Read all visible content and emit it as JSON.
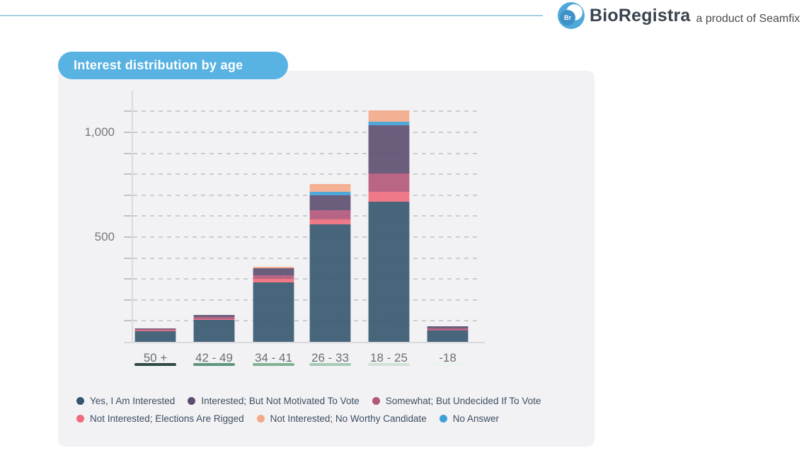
{
  "header": {
    "logo": {
      "icon_label": "Br",
      "brand": "BioRegistra",
      "tagline": "a product of Seamfix"
    }
  },
  "card": {
    "title": "Interest distribution by age"
  },
  "theme": {
    "top_rule_color": "#A7CFE0",
    "badge_bg": "#58B2E2",
    "card_bg": "#F2F2F4",
    "axis_color": "#D9DADD",
    "grid_color": "#CBCCD0",
    "logo_blue": "#4FA8DA"
  },
  "chart_data": {
    "type": "bar",
    "stacked": true,
    "title": "Interest distribution by age",
    "categories": [
      "50 +",
      "42 - 49",
      "34 - 41",
      "26 - 33",
      "18 - 25",
      "-18"
    ],
    "series": [
      {
        "name": "Yes, I Am Interested",
        "color": "#35566F",
        "values": [
          50,
          105,
          285,
          560,
          670,
          54
        ]
      },
      {
        "name": "Interested; But Not Motivated To Vote",
        "color": "#5D4D70",
        "values": [
          4,
          11,
          33,
          70,
          230,
          11
        ]
      },
      {
        "name": "Somewhat; But Undecided If To Vote",
        "color": "#B2567B",
        "values": [
          5,
          8,
          17,
          45,
          88,
          10
        ]
      },
      {
        "name": "Not Interested; Elections Are Rigged",
        "color": "#F06C7D",
        "values": [
          5,
          4,
          17,
          25,
          47,
          0
        ]
      },
      {
        "name": "Not Interested; No Worthy Candidate",
        "color": "#F4A989",
        "values": [
          0,
          0,
          7,
          38,
          54,
          0
        ]
      },
      {
        "name": "No Answer",
        "color": "#3F9FD8",
        "values": [
          0,
          0,
          0,
          15,
          16,
          0
        ]
      }
    ],
    "stack_order_bottom_to_top": [
      0,
      3,
      2,
      1,
      5,
      4
    ],
    "ylim": [
      0,
      1150
    ],
    "gridline_step": 100,
    "y_tick_labels": [
      {
        "value": 500,
        "label": "500"
      },
      {
        "value": 1000,
        "label": "1,000"
      }
    ],
    "grid": "dashed-horizontal",
    "legend_position": "bottom",
    "legend_rows": [
      [
        0,
        1,
        2
      ],
      [
        3,
        4,
        5
      ]
    ],
    "category_underline_colors": [
      "#2E4A41",
      "#5E967C",
      "#7FB392",
      "#A6CAB3",
      "#CFE2D5",
      "#EAF3ED"
    ]
  }
}
